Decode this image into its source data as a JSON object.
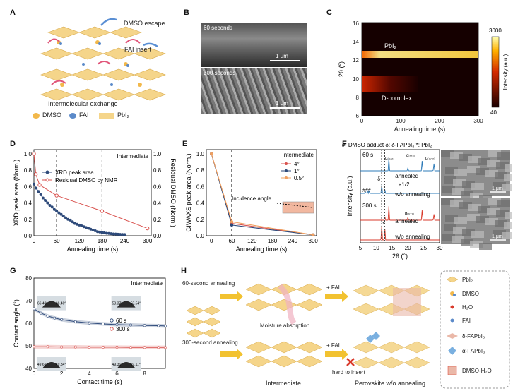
{
  "panels": {
    "A": "A",
    "B": "B",
    "C": "C",
    "D": "D",
    "E": "E",
    "F": "F",
    "G": "G",
    "H": "H"
  },
  "a": {
    "dmso_escape": "DMSO escape",
    "fai_insert": "FAI insert",
    "caption": "Intermolecular exchange",
    "legend": [
      "DMSO",
      "FAI",
      "PbI₂"
    ]
  },
  "b": {
    "top_caption": "60 seconds",
    "bottom_caption": "300 seconds",
    "scale": "1 μm"
  },
  "c": {
    "xlabel": "Annealing time (s)",
    "ylabel": "2θ (°)",
    "xticks": [
      "0",
      "100",
      "200",
      "300"
    ],
    "yticks": [
      "6",
      "8",
      "10",
      "12",
      "14",
      "16"
    ],
    "pbi2_label": "PbI₂",
    "dcomplex_label": "D-complex",
    "colorbar_label": "Intensity (a.u.)",
    "cbar_max": "3000",
    "cbar_min": "40",
    "colors": {
      "hot_low": "#1a0000",
      "hot_mid": "#d42a00",
      "hot_high": "#ffff9e"
    }
  },
  "chart_data": [
    {
      "type": "line",
      "panel": "D",
      "title": "Intermediate",
      "xlabel": "Annealing time (s)",
      "ylabel": "XRD peak area (Norm.)",
      "y2label": "Residual DMSO (Norm.)",
      "xlim": [
        0,
        310
      ],
      "ylim": [
        0,
        1.05
      ],
      "xticks": [
        "0",
        "60",
        "120",
        "180",
        "240",
        "300"
      ],
      "yticks": [
        "0.0",
        "0.2",
        "0.4",
        "0.6",
        "0.8",
        "1.0"
      ],
      "series": [
        {
          "name": "XRD peak area",
          "color": "#2e4a7a",
          "x": [
            0,
            6,
            12,
            18,
            24,
            30,
            36,
            42,
            48,
            54,
            60,
            66,
            72,
            78,
            84,
            90,
            96,
            102,
            108,
            114,
            120,
            126,
            132,
            138,
            144,
            150,
            156,
            162,
            168,
            174,
            180,
            186,
            192,
            198,
            204,
            210,
            216,
            222,
            228,
            234,
            240
          ],
          "y": [
            0.63,
            0.58,
            0.54,
            0.5,
            0.46,
            0.43,
            0.4,
            0.37,
            0.35,
            0.32,
            0.3,
            0.28,
            0.26,
            0.24,
            0.22,
            0.2,
            0.19,
            0.17,
            0.15,
            0.14,
            0.13,
            0.12,
            0.11,
            0.1,
            0.09,
            0.08,
            0.07,
            0.06,
            0.05,
            0.045,
            0.04,
            0.035,
            0.03,
            0.028,
            0.025,
            0.022,
            0.02,
            0.018,
            0.016,
            0.015,
            0.014
          ]
        },
        {
          "name": "Residual DMSO by NMR",
          "color": "#d9534f",
          "x": [
            0,
            5,
            15,
            60,
            180,
            300
          ],
          "y": [
            1.0,
            0.75,
            0.62,
            0.49,
            0.3,
            0.09
          ]
        }
      ],
      "vlines": [
        60,
        180
      ]
    },
    {
      "type": "line",
      "panel": "E",
      "xlabel": "Annealing time (s)",
      "ylabel": "GIWAXS peak area (Norm.)",
      "xlim": [
        -15,
        310
      ],
      "ylim": [
        0,
        1.05
      ],
      "xticks": [
        "0",
        "60",
        "120",
        "180",
        "240",
        "300"
      ],
      "yticks": [
        "0.0",
        "0.2",
        "0.4",
        "0.6",
        "0.8",
        "1.0"
      ],
      "legend_title": "Intermediate",
      "annotation": "Incidence angle",
      "series": [
        {
          "name": "4°",
          "color": "#d9534f",
          "x": [
            0,
            60,
            300
          ],
          "y": [
            1.0,
            0.15,
            0.01
          ]
        },
        {
          "name": "1°",
          "color": "#2e4a7a",
          "x": [
            0,
            60,
            300
          ],
          "y": [
            1.0,
            0.13,
            0.01
          ]
        },
        {
          "name": "0.5°",
          "color": "#f0a060",
          "x": [
            0,
            60,
            300
          ],
          "y": [
            1.0,
            0.17,
            0.01
          ]
        }
      ],
      "vlines": [
        60
      ]
    },
    {
      "type": "line",
      "panel": "F",
      "title": "#: DMSO adduct  δ: δ-FAPbI₃  *: PbI₂",
      "xlabel": "2θ (°)",
      "ylabel": "Intensity (a.u.)",
      "xticks": [
        "5",
        "10",
        "15",
        "20",
        "25",
        "30"
      ],
      "xlim": [
        5,
        30
      ],
      "labels": [
        "60 s",
        "300 s",
        "annealed",
        "annealed",
        "×1/2",
        "w/o annealing",
        "w/o annealing",
        "α₍₀₀₁₎",
        "α₍₁₁₁₎",
        "α₍₀₀₂₎",
        "α₍₀₁₁₎",
        "δ",
        "###",
        "*"
      ],
      "series": [
        {
          "name": "60 s annealed",
          "color": "#2e7bb8"
        },
        {
          "name": "60 s w/o annealing",
          "color": "#2e7bb8"
        },
        {
          "name": "300 s annealed",
          "color": "#d93a2b"
        },
        {
          "name": "300 s w/o annealing",
          "color": "#d93a2b"
        }
      ],
      "scale": "1 μm"
    },
    {
      "type": "line",
      "panel": "G",
      "title": "Intermediate",
      "xlabel": "Contact time (s)",
      "ylabel": "Contact angle (°)",
      "xlim": [
        0,
        9.5
      ],
      "ylim": [
        40,
        80
      ],
      "xticks": [
        "0",
        "2",
        "4",
        "6",
        "8"
      ],
      "yticks": [
        "40",
        "50",
        "60",
        "70",
        "80"
      ],
      "series": [
        {
          "name": "60 s",
          "color": "#2e4a7a",
          "x": [
            0,
            0.5,
            1,
            1.5,
            2,
            3,
            4,
            5,
            6,
            7,
            8,
            9,
            9.5
          ],
          "y": [
            66.4,
            64.5,
            63.2,
            62.3,
            61.6,
            60.7,
            60.1,
            59.7,
            59.4,
            59.2,
            59.0,
            58.9,
            58.8
          ]
        },
        {
          "name": "300 s",
          "color": "#d9534f",
          "x": [
            0,
            1,
            2,
            3,
            4,
            5,
            6,
            7,
            8,
            9,
            9.5
          ],
          "y": [
            49.6,
            49.6,
            49.5,
            49.5,
            49.4,
            49.4,
            49.4,
            49.3,
            49.3,
            49.3,
            49.3
          ]
        }
      ],
      "insets": [
        "66.40°",
        "66.40°",
        "53.37°",
        "53.54°",
        "49.61°",
        "49.34°",
        "49.36°",
        "49.11°"
      ]
    }
  ],
  "h": {
    "label_60": "60-second annealing",
    "label_300": "300-second annealing",
    "fai1": "+ FAI",
    "fai2": "+ FAI",
    "moisture": "Moisture absorption",
    "hard": "hard to insert",
    "intermediate": "Intermediate",
    "perovskite": "Perovskite w/o annealing",
    "legend": [
      "PbI₂",
      "DMSO",
      "H₂O",
      "FAI",
      "δ-FAPbI₃",
      "α-FAPbI₃",
      "DMSO-H₂O"
    ]
  }
}
